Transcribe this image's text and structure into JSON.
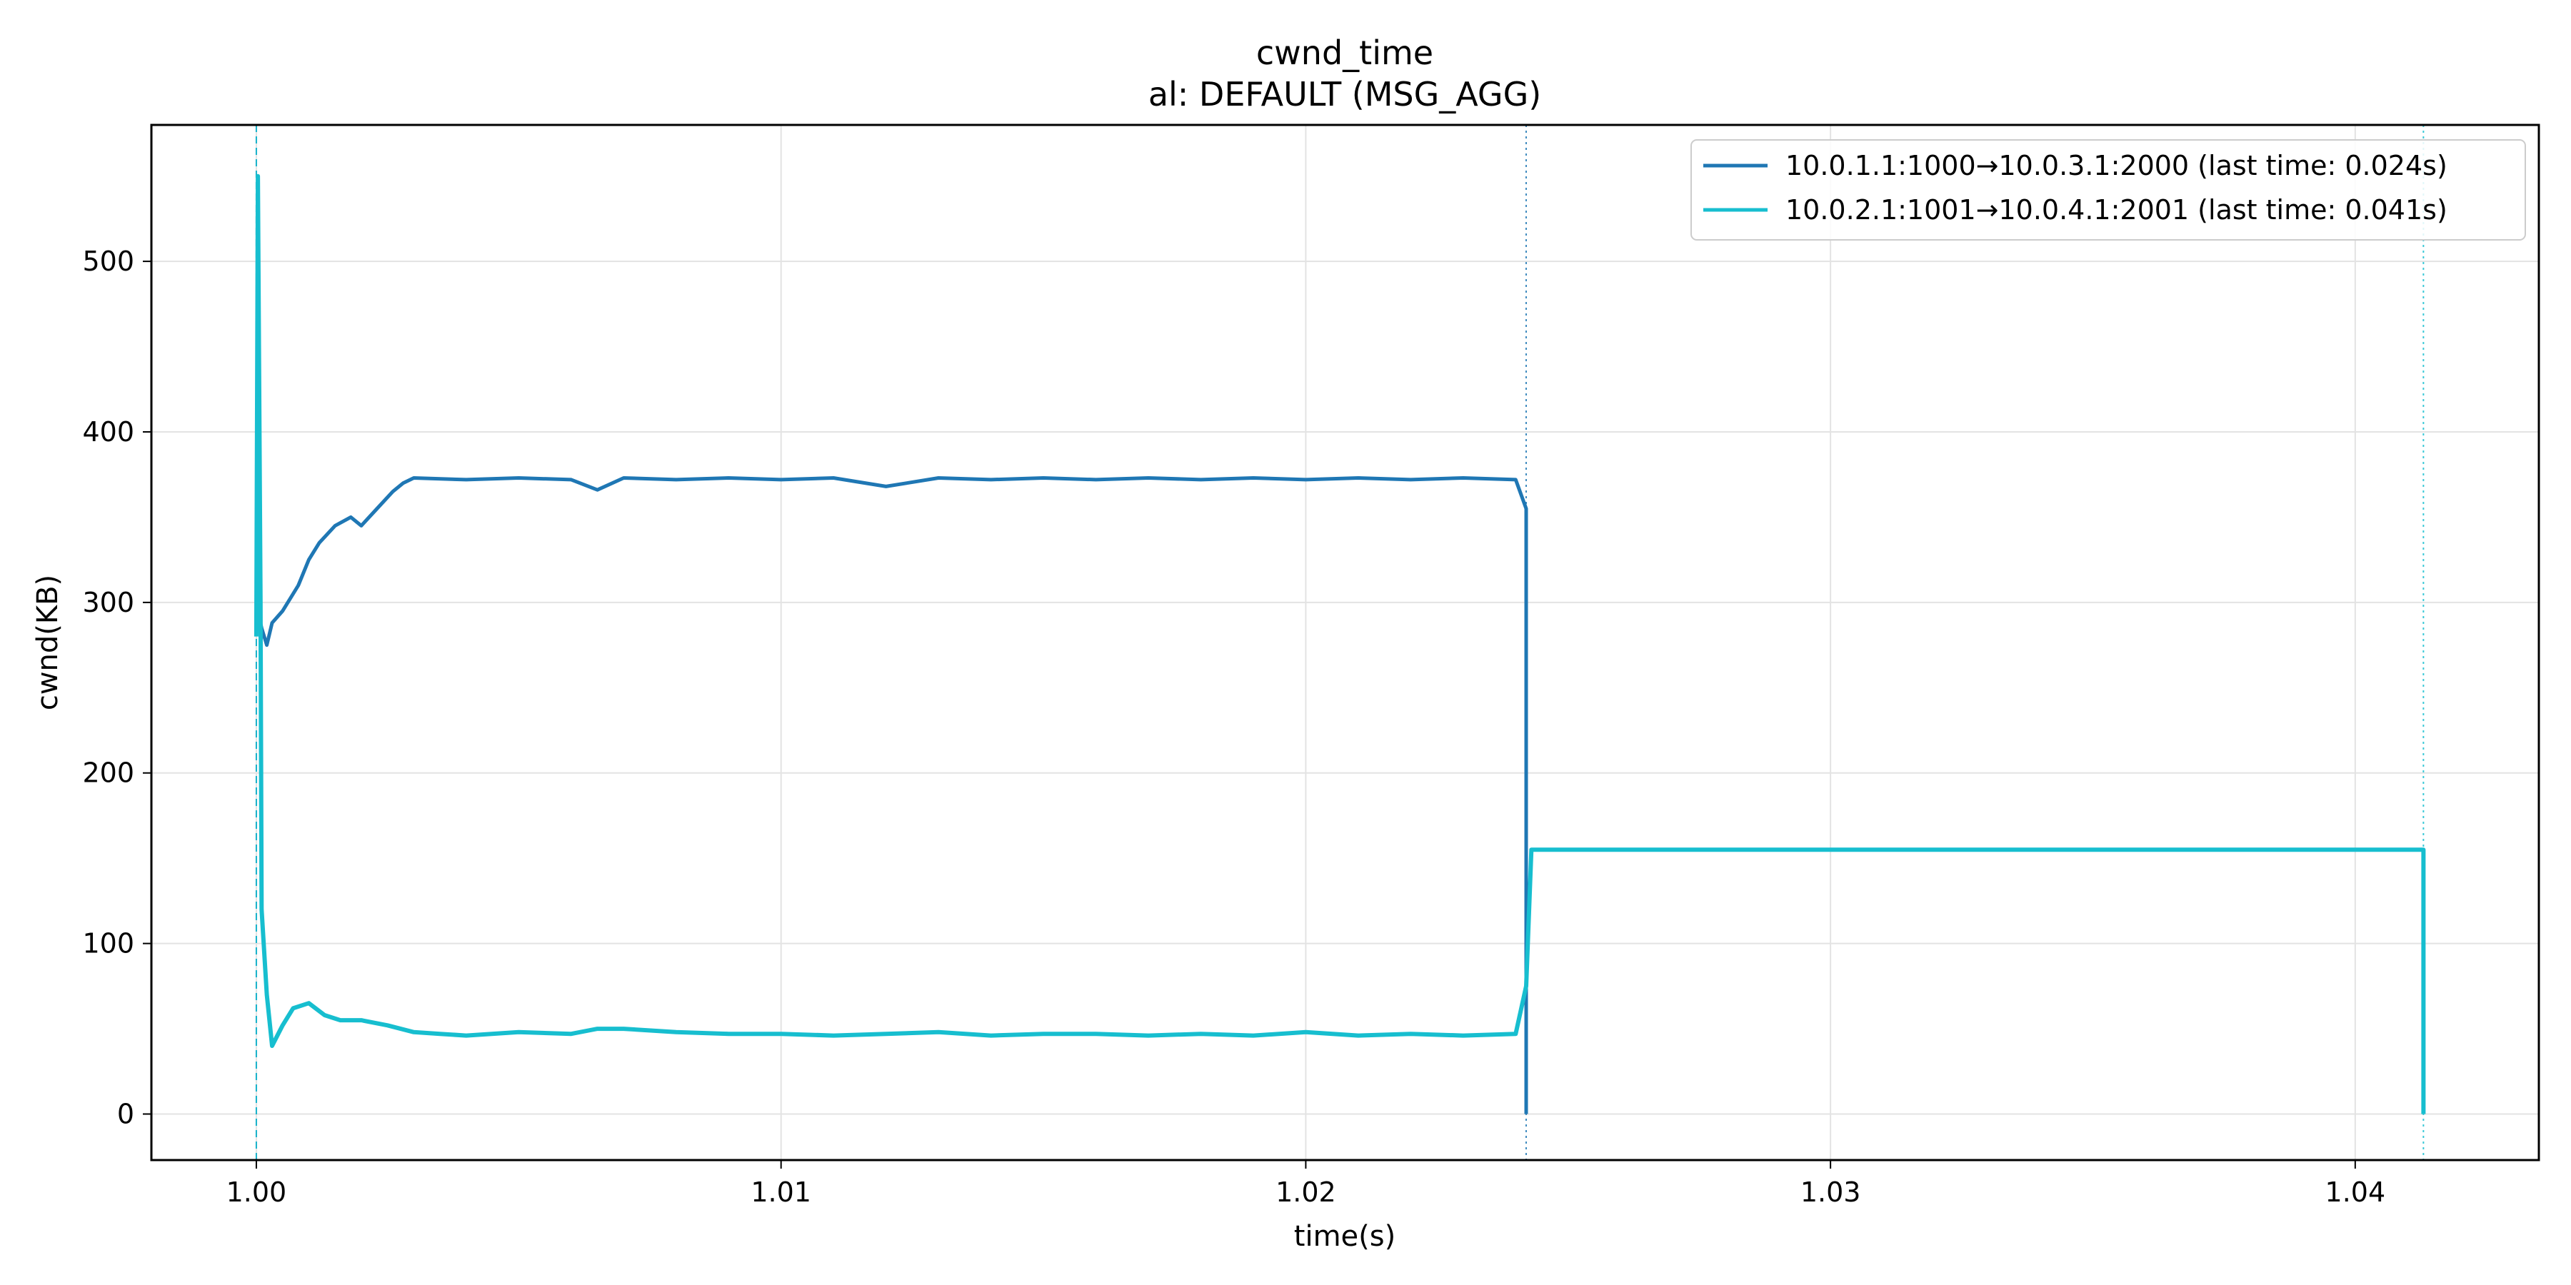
{
  "chart_data": {
    "type": "line",
    "title": "cwnd_time",
    "subtitle": "al: DEFAULT (MSG_AGG)",
    "xlabel": "time(s)",
    "ylabel": "cwnd(KB)",
    "xlim": [
      0.998,
      1.0435
    ],
    "ylim": [
      -27,
      580
    ],
    "xticks": [
      1.0,
      1.01,
      1.02,
      1.03,
      1.04
    ],
    "xtick_labels": [
      "1.00",
      "1.01",
      "1.02",
      "1.03",
      "1.04"
    ],
    "yticks": [
      0,
      100,
      200,
      300,
      400,
      500
    ],
    "ytick_labels": [
      "0",
      "100",
      "200",
      "300",
      "400",
      "500"
    ],
    "grid": true,
    "legend_position": "top-right",
    "vlines": [
      {
        "x": 1.0,
        "color": "#1f77b4",
        "style": "dashed"
      },
      {
        "x": 1.0,
        "color": "#17becf",
        "style": "dashed"
      },
      {
        "x": 1.0242,
        "color": "#1f77b4",
        "style": "dotted"
      },
      {
        "x": 1.0413,
        "color": "#17becf",
        "style": "dotted"
      }
    ],
    "series": [
      {
        "name": "10.0.1.1:1000→10.0.3.1:2000 (last time: 0.024s)",
        "color": "#1f77b4",
        "x": [
          1.0,
          1.0001,
          1.0002,
          1.0003,
          1.0005,
          1.0008,
          1.001,
          1.0012,
          1.0015,
          1.0018,
          1.002,
          1.0023,
          1.0026,
          1.0028,
          1.003,
          1.004,
          1.005,
          1.006,
          1.0065,
          1.007,
          1.008,
          1.009,
          1.01,
          1.011,
          1.012,
          1.013,
          1.014,
          1.015,
          1.016,
          1.017,
          1.018,
          1.019,
          1.02,
          1.021,
          1.022,
          1.023,
          1.024,
          1.0242,
          1.0242
        ],
        "y": [
          300,
          285,
          275,
          288,
          295,
          310,
          325,
          335,
          345,
          350,
          345,
          355,
          365,
          370,
          373,
          372,
          373,
          372,
          366,
          373,
          372,
          373,
          372,
          373,
          368,
          373,
          372,
          373,
          372,
          373,
          372,
          373,
          372,
          373,
          372,
          373,
          372,
          355,
          0
        ]
      },
      {
        "name": "10.0.2.1:1001→10.0.4.1:2001 (last time: 0.041s)",
        "color": "#17becf",
        "x": [
          1.0,
          1.00003,
          1.00008,
          1.0001,
          1.0002,
          1.0003,
          1.0005,
          1.0007,
          1.001,
          1.0013,
          1.0016,
          1.002,
          1.0025,
          1.003,
          1.0035,
          1.004,
          1.005,
          1.006,
          1.0065,
          1.007,
          1.008,
          1.009,
          1.01,
          1.011,
          1.012,
          1.013,
          1.014,
          1.015,
          1.016,
          1.017,
          1.018,
          1.019,
          1.02,
          1.021,
          1.022,
          1.023,
          1.024,
          1.0242,
          1.0243,
          1.03,
          1.035,
          1.04,
          1.0413,
          1.0413
        ],
        "y": [
          280,
          550,
          300,
          120,
          70,
          40,
          52,
          62,
          65,
          58,
          55,
          55,
          52,
          48,
          47,
          46,
          48,
          47,
          50,
          50,
          48,
          47,
          47,
          46,
          47,
          48,
          46,
          47,
          47,
          46,
          47,
          46,
          48,
          46,
          47,
          46,
          47,
          75,
          155,
          155,
          155,
          155,
          155,
          0
        ]
      }
    ]
  }
}
